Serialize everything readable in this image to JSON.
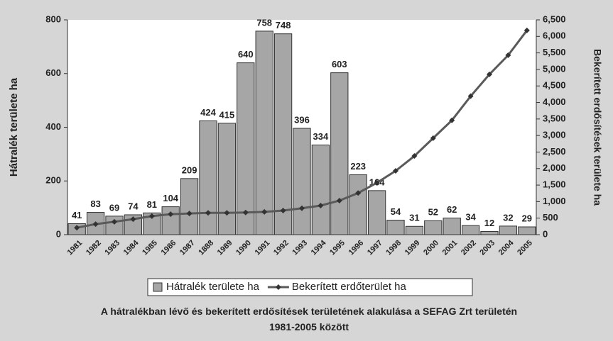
{
  "chart_data": {
    "type": "bar",
    "title": "A hátralékban lévő és bekerített erdősítések területének alakulása   a SEFAG Zrt területén 1981-2005 között",
    "y_label": "Hátralék területe ha",
    "y2_label": "Bekerített erdősítések területe ha",
    "categories": [
      "1981",
      "1982",
      "1983",
      "1984",
      "1985",
      "1986",
      "1987",
      "1888",
      "1989",
      "1990",
      "1991",
      "1992",
      "1993",
      "1994",
      "1995",
      "1996",
      "1997",
      "1998",
      "1999",
      "2000",
      "2001",
      "2002",
      "2003",
      "2004",
      "2005"
    ],
    "series": [
      {
        "name": "Hátralék területe ha",
        "type": "bar",
        "color": "#a6a6a6",
        "values": [
          41,
          83,
          69,
          74,
          81,
          104,
          209,
          424,
          415,
          640,
          758,
          748,
          396,
          334,
          603,
          223,
          164,
          54,
          31,
          52,
          62,
          34,
          12,
          32,
          29
        ]
      },
      {
        "name": "Bekerített erdőterület ha",
        "type": "line",
        "axis": "y2",
        "color": "#5a5a5a",
        "values": [
          210,
          320,
          390,
          470,
          560,
          620,
          640,
          660,
          660,
          670,
          690,
          730,
          800,
          880,
          1030,
          1260,
          1570,
          1930,
          2380,
          2920,
          3460,
          4190,
          4850,
          5430,
          6180
        ]
      }
    ],
    "ylim": [
      0,
      800
    ],
    "yticks": [
      0,
      200,
      400,
      600,
      800
    ],
    "y2lim": [
      0,
      6500
    ],
    "y2ticks": [
      0,
      500,
      {
        "value": 1000,
        "label": "1,000"
      },
      {
        "value": 1500,
        "label": "1,500"
      },
      {
        "value": 2000,
        "label": "2,000"
      },
      {
        "value": 2500,
        "label": "2,500"
      },
      {
        "value": 3000,
        "label": "3,000"
      },
      {
        "value": 3500,
        "label": "3,500"
      },
      {
        "value": 4000,
        "label": "4,000"
      },
      {
        "value": 4500,
        "label": "4,500"
      },
      {
        "value": 5000,
        "label": "5,000"
      },
      {
        "value": 5500,
        "label": "5,500"
      },
      {
        "value": 6000,
        "label": "6,000"
      },
      {
        "value": 6500,
        "label": "6,500"
      }
    ],
    "legend": "bottom"
  }
}
